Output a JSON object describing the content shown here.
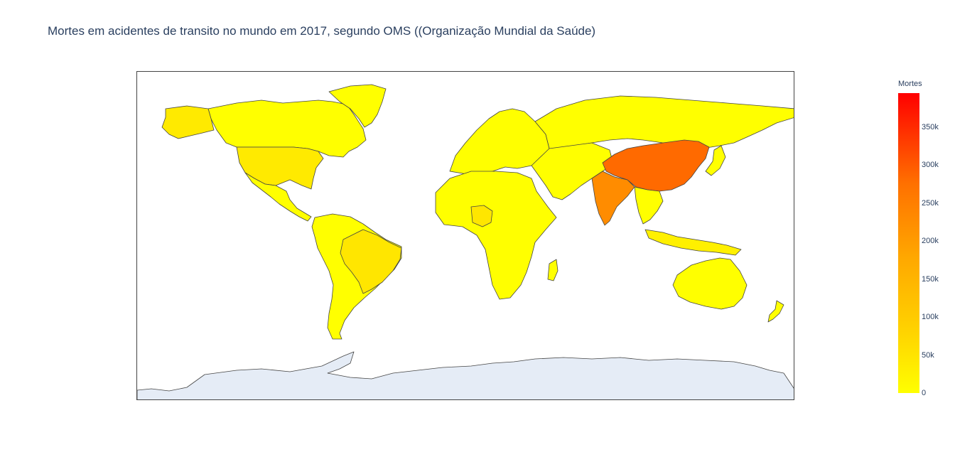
{
  "title": "Mortes em acidentes de transito no mundo em 2017, segundo OMS ((Organização Mundial da Saúde)",
  "colorbar": {
    "title": "Mortes",
    "min": 0,
    "max": 395000,
    "ticks": [
      {
        "value": 0,
        "label": "0"
      },
      {
        "value": 50000,
        "label": "50k"
      },
      {
        "value": 100000,
        "label": "100k"
      },
      {
        "value": 150000,
        "label": "150k"
      },
      {
        "value": 200000,
        "label": "200k"
      },
      {
        "value": 250000,
        "label": "250k"
      },
      {
        "value": 300000,
        "label": "300k"
      },
      {
        "value": 350000,
        "label": "350k"
      }
    ],
    "colors": [
      "#ffff00",
      "#ff0000"
    ]
  },
  "map": {
    "projection": "equirectangular",
    "land_color": "#ffff00",
    "ocean_color": "#ffffff",
    "antarctica_color": "#e5ecf6",
    "border_color": "#444444"
  },
  "chart_data": {
    "type": "choropleth",
    "variable": "Mortes",
    "regions": [
      {
        "name": "China",
        "value": 260000,
        "color": "#ff6a00"
      },
      {
        "name": "India",
        "value": 200000,
        "color": "#ff8c00"
      },
      {
        "name": "Brazil",
        "value": 40000,
        "color": "#ffe600"
      },
      {
        "name": "United States",
        "value": 38000,
        "color": "#ffea00"
      },
      {
        "name": "Alaska",
        "value": 38000,
        "color": "#ffea00"
      },
      {
        "name": "Nigeria",
        "value": 40000,
        "color": "#ffe600"
      },
      {
        "name": "Indonesia",
        "value": 30000,
        "color": "#fff000"
      }
    ]
  }
}
